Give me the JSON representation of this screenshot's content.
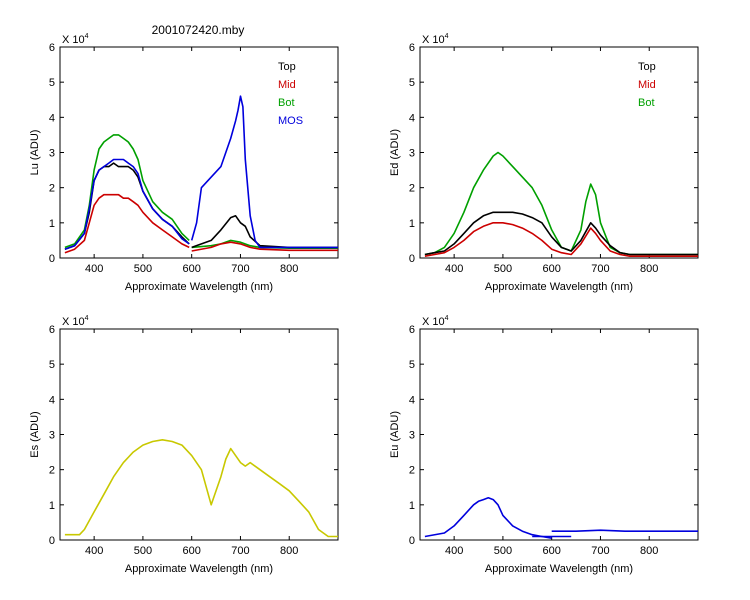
{
  "figure": {
    "title": "2001072420.mby",
    "exponent_label": "X 10",
    "exponent_power": "4"
  },
  "colors": {
    "Top": "#000000",
    "Mid": "#cc0000",
    "Bot": "#00a000",
    "MOS": "#0000dd",
    "Es": "#c8c800",
    "Eu": "#0000dd"
  },
  "chart_data": [
    {
      "id": "lu",
      "type": "line",
      "ylabel": "Lu (ADU)",
      "xlabel": "Approximate Wavelength (nm)",
      "xlim": [
        330,
        900
      ],
      "ylim": [
        0,
        6
      ],
      "xticks": [
        400,
        500,
        600,
        700,
        800
      ],
      "yticks": [
        0,
        1,
        2,
        3,
        4,
        5,
        6
      ],
      "legend": [
        "Top",
        "Mid",
        "Bot",
        "MOS"
      ],
      "series": [
        {
          "name": "Bot",
          "color": "#00a000",
          "segments": [
            {
              "x": [
                340,
                360,
                380,
                390,
                400,
                410,
                420,
                430,
                440,
                450,
                460,
                470,
                480,
                490,
                500,
                520,
                540,
                560,
                580,
                595
              ],
              "y": [
                0.3,
                0.4,
                0.8,
                1.5,
                2.5,
                3.1,
                3.3,
                3.4,
                3.5,
                3.5,
                3.4,
                3.3,
                3.1,
                2.8,
                2.2,
                1.6,
                1.3,
                1.1,
                0.7,
                0.5
              ]
            },
            {
              "x": [
                600,
                640,
                660,
                680,
                700,
                720,
                740,
                800,
                900
              ],
              "y": [
                0.3,
                0.35,
                0.4,
                0.5,
                0.45,
                0.35,
                0.3,
                0.28,
                0.28
              ]
            }
          ]
        },
        {
          "name": "Top",
          "color": "#000000",
          "segments": [
            {
              "x": [
                340,
                360,
                380,
                390,
                400,
                410,
                420,
                430,
                440,
                450,
                460,
                470,
                480,
                490,
                500,
                520,
                540,
                560,
                580,
                595
              ],
              "y": [
                0.25,
                0.35,
                0.7,
                1.3,
                2.2,
                2.5,
                2.6,
                2.6,
                2.7,
                2.6,
                2.6,
                2.6,
                2.5,
                2.3,
                1.9,
                1.4,
                1.1,
                0.9,
                0.6,
                0.4
              ]
            },
            {
              "x": [
                600,
                640,
                660,
                680,
                690,
                700,
                710,
                720,
                740,
                800,
                900
              ],
              "y": [
                0.3,
                0.5,
                0.8,
                1.15,
                1.2,
                1.0,
                0.9,
                0.6,
                0.35,
                0.3,
                0.3
              ]
            }
          ]
        },
        {
          "name": "MOS",
          "color": "#0000dd",
          "segments": [
            {
              "x": [
                340,
                360,
                380,
                390,
                400,
                410,
                420,
                430,
                440,
                450,
                460,
                470,
                480,
                490,
                500,
                520,
                540,
                560,
                580,
                595
              ],
              "y": [
                0.25,
                0.35,
                0.7,
                1.4,
                2.2,
                2.5,
                2.6,
                2.7,
                2.8,
                2.8,
                2.8,
                2.7,
                2.6,
                2.4,
                1.9,
                1.4,
                1.1,
                0.9,
                0.55,
                0.4
              ]
            },
            {
              "x": [
                600,
                610,
                620,
                640,
                660,
                670,
                680,
                690,
                695,
                700,
                705,
                710,
                720,
                730,
                740,
                800,
                900
              ],
              "y": [
                0.5,
                1.0,
                2.0,
                2.3,
                2.6,
                3.0,
                3.4,
                3.9,
                4.2,
                4.6,
                4.3,
                2.8,
                1.2,
                0.5,
                0.3,
                0.3,
                0.3
              ]
            }
          ]
        },
        {
          "name": "Mid",
          "color": "#cc0000",
          "segments": [
            {
              "x": [
                340,
                360,
                380,
                390,
                400,
                410,
                420,
                430,
                440,
                450,
                460,
                470,
                480,
                490,
                500,
                520,
                540,
                560,
                580,
                595
              ],
              "y": [
                0.15,
                0.25,
                0.5,
                1.0,
                1.5,
                1.7,
                1.8,
                1.8,
                1.8,
                1.8,
                1.7,
                1.7,
                1.6,
                1.5,
                1.3,
                1.0,
                0.8,
                0.6,
                0.4,
                0.3
              ]
            },
            {
              "x": [
                600,
                640,
                660,
                680,
                700,
                720,
                740,
                800,
                900
              ],
              "y": [
                0.2,
                0.3,
                0.4,
                0.45,
                0.4,
                0.3,
                0.25,
                0.22,
                0.22
              ]
            }
          ]
        }
      ]
    },
    {
      "id": "ed",
      "type": "line",
      "ylabel": "Ed  (ADU)",
      "xlabel": "Approximate Wavelength (nm)",
      "xlim": [
        330,
        900
      ],
      "ylim": [
        0,
        6
      ],
      "xticks": [
        400,
        500,
        600,
        700,
        800
      ],
      "yticks": [
        0,
        1,
        2,
        3,
        4,
        5,
        6
      ],
      "legend": [
        "Top",
        "Mid",
        "Bot"
      ],
      "series": [
        {
          "name": "Bot",
          "color": "#00a000",
          "segments": [
            {
              "x": [
                340,
                360,
                380,
                400,
                420,
                440,
                460,
                480,
                490,
                500,
                520,
                540,
                560,
                580,
                600,
                620,
                640,
                660,
                670,
                680,
                690,
                700,
                720,
                740,
                760,
                800,
                900
              ],
              "y": [
                0.1,
                0.15,
                0.3,
                0.7,
                1.3,
                2.0,
                2.5,
                2.9,
                3.0,
                2.9,
                2.6,
                2.3,
                2.0,
                1.5,
                0.8,
                0.3,
                0.2,
                0.8,
                1.6,
                2.1,
                1.8,
                1.0,
                0.3,
                0.15,
                0.1,
                0.1,
                0.1
              ]
            }
          ]
        },
        {
          "name": "Top",
          "color": "#000000",
          "segments": [
            {
              "x": [
                340,
                360,
                380,
                400,
                420,
                440,
                460,
                480,
                500,
                520,
                540,
                560,
                580,
                600,
                620,
                640,
                660,
                680,
                690,
                700,
                720,
                740,
                760,
                800,
                900
              ],
              "y": [
                0.1,
                0.15,
                0.2,
                0.4,
                0.7,
                1.0,
                1.2,
                1.3,
                1.3,
                1.3,
                1.25,
                1.15,
                1.0,
                0.6,
                0.3,
                0.2,
                0.5,
                1.0,
                0.85,
                0.65,
                0.35,
                0.15,
                0.1,
                0.1,
                0.1
              ]
            }
          ]
        },
        {
          "name": "Mid",
          "color": "#cc0000",
          "segments": [
            {
              "x": [
                340,
                360,
                380,
                400,
                420,
                440,
                460,
                480,
                500,
                520,
                540,
                560,
                580,
                600,
                620,
                640,
                660,
                680,
                690,
                700,
                720,
                740,
                760,
                800,
                900
              ],
              "y": [
                0.05,
                0.1,
                0.15,
                0.3,
                0.5,
                0.75,
                0.9,
                1.0,
                1.0,
                0.95,
                0.85,
                0.7,
                0.5,
                0.25,
                0.15,
                0.1,
                0.4,
                0.85,
                0.7,
                0.5,
                0.2,
                0.1,
                0.05,
                0.05,
                0.05
              ]
            }
          ]
        }
      ]
    },
    {
      "id": "es",
      "type": "line",
      "ylabel": "Es  (ADU)",
      "xlabel": "Approximate Wavelength (nm)",
      "xlim": [
        330,
        900
      ],
      "ylim": [
        0,
        6
      ],
      "xticks": [
        400,
        500,
        600,
        700,
        800
      ],
      "yticks": [
        0,
        1,
        2,
        3,
        4,
        5,
        6
      ],
      "legend": [],
      "series": [
        {
          "name": "",
          "color": "#c8c800",
          "segments": [
            {
              "x": [
                340,
                370,
                380,
                400,
                420,
                440,
                460,
                480,
                500,
                520,
                540,
                560,
                580,
                600,
                620,
                640,
                660,
                670,
                680,
                690,
                700,
                710,
                720,
                740,
                760,
                780,
                800,
                820,
                840,
                860,
                880,
                900
              ],
              "y": [
                0.15,
                0.15,
                0.3,
                0.8,
                1.3,
                1.8,
                2.2,
                2.5,
                2.7,
                2.8,
                2.85,
                2.8,
                2.7,
                2.4,
                2.0,
                1.0,
                1.8,
                2.3,
                2.6,
                2.4,
                2.2,
                2.1,
                2.2,
                2.0,
                1.8,
                1.6,
                1.4,
                1.1,
                0.8,
                0.3,
                0.1,
                0.1
              ]
            }
          ]
        }
      ]
    },
    {
      "id": "eu",
      "type": "line",
      "ylabel": "Eu  (ADU)",
      "xlabel": "Approximate Wavelength (nm)",
      "xlim": [
        330,
        900
      ],
      "ylim": [
        0,
        6
      ],
      "xticks": [
        400,
        500,
        600,
        700,
        800
      ],
      "yticks": [
        0,
        1,
        2,
        3,
        4,
        5,
        6
      ],
      "legend": [],
      "series": [
        {
          "name": "",
          "color": "#0000dd",
          "segments": [
            {
              "x": [
                340,
                380,
                400,
                420,
                440,
                450,
                460,
                470,
                480,
                490,
                500,
                520,
                540,
                560,
                580,
                600
              ],
              "y": [
                0.1,
                0.2,
                0.4,
                0.7,
                1.0,
                1.1,
                1.15,
                1.2,
                1.15,
                1.0,
                0.7,
                0.4,
                0.25,
                0.15,
                0.1,
                0.05
              ]
            },
            {
              "x": [
                560,
                600,
                640
              ],
              "y": [
                0.1,
                0.1,
                0.1
              ]
            },
            {
              "x": [
                600,
                650,
                700,
                750,
                800,
                850,
                900
              ],
              "y": [
                0.25,
                0.25,
                0.28,
                0.25,
                0.25,
                0.25,
                0.25
              ]
            }
          ]
        }
      ]
    }
  ]
}
